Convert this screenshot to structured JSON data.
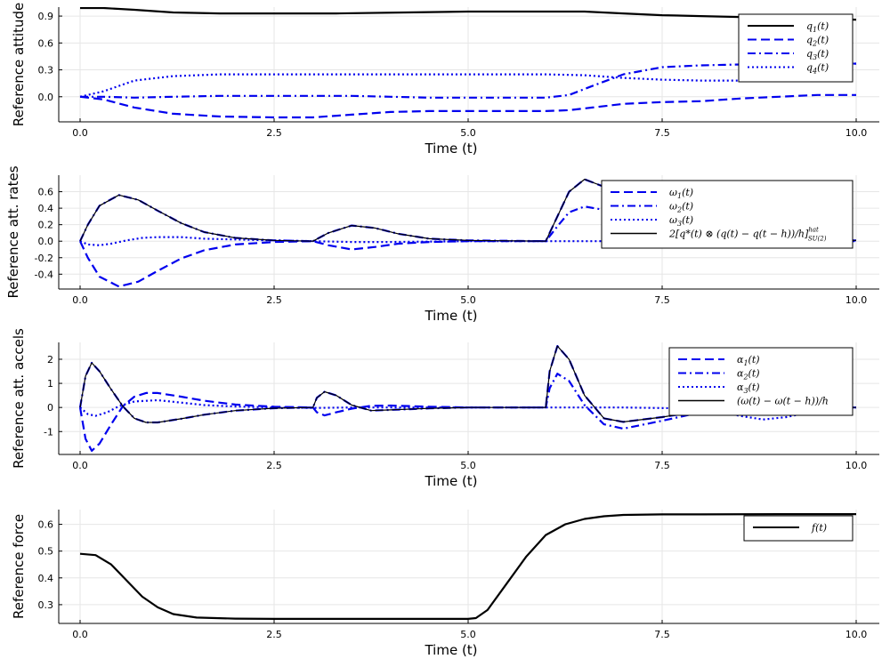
{
  "chart_data": [
    {
      "type": "line",
      "xlabel": "Time (t)",
      "ylabel": "Reference attitude",
      "xlim": [
        0,
        10
      ],
      "ylim": [
        -0.28,
        1.0
      ],
      "xticks": [
        0,
        2.5,
        5,
        7.5,
        10
      ],
      "xtick_labels": [
        "0.0",
        "2.5",
        "5.0",
        "7.5",
        "10.0"
      ],
      "yticks": [
        0,
        0.3,
        0.6,
        0.9
      ],
      "ytick_labels": [
        "0.0",
        "0.3",
        "0.6",
        "0.9"
      ],
      "grid": true,
      "legend_position": "top-right",
      "series": [
        {
          "name": "q_1(t)",
          "style": "solid",
          "color": "#000000",
          "x": [
            0,
            0.3,
            0.7,
            1.2,
            1.8,
            2.5,
            3.3,
            4.2,
            5.0,
            6.0,
            6.5,
            7.0,
            7.5,
            8.0,
            8.5,
            9.0,
            9.5,
            10.0
          ],
          "y": [
            0.99,
            0.99,
            0.97,
            0.94,
            0.93,
            0.93,
            0.93,
            0.94,
            0.95,
            0.95,
            0.95,
            0.93,
            0.91,
            0.9,
            0.89,
            0.88,
            0.87,
            0.86
          ]
        },
        {
          "name": "q_2(t)",
          "style": "dash",
          "color": "#0000ee",
          "x": [
            0,
            0.3,
            0.7,
            1.2,
            1.8,
            2.5,
            3.0,
            3.5,
            4.0,
            4.5,
            5.0,
            5.5,
            6.0,
            6.3,
            6.6,
            7.0,
            7.5,
            8.0,
            8.5,
            9.0,
            9.5,
            10.0
          ],
          "y": [
            0.0,
            -0.03,
            -0.12,
            -0.19,
            -0.22,
            -0.23,
            -0.23,
            -0.2,
            -0.17,
            -0.16,
            -0.16,
            -0.16,
            -0.16,
            -0.15,
            -0.12,
            -0.08,
            -0.06,
            -0.05,
            -0.02,
            0.0,
            0.02,
            0.02
          ]
        },
        {
          "name": "q_3(t)",
          "style": "dashdot",
          "color": "#0000ee",
          "x": [
            0,
            0.3,
            0.7,
            1.2,
            1.8,
            2.5,
            3.0,
            3.5,
            4.0,
            4.5,
            5.0,
            5.5,
            6.0,
            6.3,
            6.6,
            7.0,
            7.5,
            8.0,
            8.5,
            9.0,
            9.5,
            10.0
          ],
          "y": [
            0.0,
            0.0,
            -0.01,
            0.0,
            0.01,
            0.01,
            0.01,
            0.01,
            0.0,
            -0.01,
            -0.01,
            -0.01,
            -0.01,
            0.02,
            0.12,
            0.25,
            0.33,
            0.35,
            0.36,
            0.36,
            0.36,
            0.37
          ]
        },
        {
          "name": "q_4(t)",
          "style": "dot",
          "color": "#0000ee",
          "x": [
            0,
            0.3,
            0.7,
            1.2,
            1.8,
            2.5,
            3.0,
            3.5,
            4.0,
            4.5,
            5.0,
            5.5,
            6.0,
            6.5,
            7.0,
            7.5,
            8.0,
            8.5,
            9.0,
            9.5,
            10.0
          ],
          "y": [
            0.0,
            0.06,
            0.18,
            0.23,
            0.25,
            0.25,
            0.25,
            0.25,
            0.25,
            0.25,
            0.25,
            0.25,
            0.25,
            0.24,
            0.21,
            0.19,
            0.18,
            0.18,
            0.23,
            0.32,
            0.37
          ]
        }
      ]
    },
    {
      "type": "line",
      "xlabel": "Time (t)",
      "ylabel": "Reference att. rates",
      "xlim": [
        0,
        10
      ],
      "ylim": [
        -0.58,
        0.8
      ],
      "xticks": [
        0,
        2.5,
        5,
        7.5,
        10
      ],
      "xtick_labels": [
        "0.0",
        "2.5",
        "5.0",
        "7.5",
        "10.0"
      ],
      "yticks": [
        -0.4,
        -0.2,
        0,
        0.2,
        0.4,
        0.6
      ],
      "ytick_labels": [
        "-0.4",
        "-0.2",
        "0.0",
        "0.2",
        "0.4",
        "0.6"
      ],
      "grid": true,
      "legend_position": "top-right",
      "series": [
        {
          "name": "ω_1(t)",
          "style": "dash",
          "color": "#0000ee",
          "x": [
            0,
            0.1,
            0.25,
            0.5,
            0.75,
            1.0,
            1.3,
            1.6,
            2.0,
            2.5,
            3.0,
            3.2,
            3.5,
            3.8,
            4.1,
            4.5,
            5.0,
            6.0,
            6.15,
            6.3,
            6.5,
            6.75,
            7.0,
            7.3,
            7.6,
            8.0,
            8.5,
            9.0,
            9.5,
            10.0
          ],
          "y": [
            0,
            -0.2,
            -0.43,
            -0.55,
            -0.49,
            -0.36,
            -0.21,
            -0.11,
            -0.04,
            -0.01,
            0,
            -0.05,
            -0.1,
            -0.07,
            -0.03,
            -0.01,
            0,
            0,
            0.3,
            0.6,
            0.75,
            0.66,
            0.4,
            0.15,
            0.03,
            0.01,
            0.01,
            0.01,
            0.01,
            0.01
          ]
        },
        {
          "name": "ω_2(t)",
          "style": "dashdot",
          "color": "#0000ee",
          "x": [
            0,
            0.1,
            0.25,
            0.5,
            0.75,
            1.0,
            1.3,
            1.6,
            2.0,
            2.5,
            3.0,
            3.2,
            3.5,
            3.8,
            4.1,
            4.5,
            5.0,
            6.0,
            6.15,
            6.3,
            6.5,
            6.75,
            7.0,
            7.3,
            7.6,
            8.0,
            8.5,
            9.0,
            9.5,
            10.0
          ],
          "y": [
            0,
            0.2,
            0.43,
            0.56,
            0.5,
            0.37,
            0.22,
            0.11,
            0.04,
            0.01,
            0,
            0.1,
            0.19,
            0.16,
            0.09,
            0.03,
            0.01,
            0,
            0.18,
            0.35,
            0.42,
            0.38,
            0.23,
            0.08,
            0.02,
            0.01,
            0.01,
            0.01,
            0.01,
            0.01
          ]
        },
        {
          "name": "ω_3(t)",
          "style": "dot",
          "color": "#0000ee",
          "x": [
            0,
            0.1,
            0.25,
            0.4,
            0.6,
            0.8,
            1.0,
            1.3,
            1.6,
            2.0,
            2.5,
            3.0,
            3.5,
            4.0,
            5.0,
            6.0,
            6.5,
            7.0,
            7.5,
            8.0,
            8.5,
            9.0,
            9.5,
            10.0
          ],
          "y": [
            0,
            -0.04,
            -0.05,
            -0.03,
            0.01,
            0.04,
            0.05,
            0.05,
            0.03,
            0.02,
            0.01,
            0,
            -0.01,
            -0.01,
            0,
            0,
            0,
            0,
            0,
            0,
            0,
            0,
            0,
            0
          ]
        },
        {
          "name": "2[q^*(t) ⊗ (q(t) − q(t − h))/h]^hat_SU(2)",
          "style": "solid",
          "thin": true,
          "color": "#000000",
          "x": [
            0,
            0.1,
            0.25,
            0.5,
            0.75,
            1.0,
            1.3,
            1.6,
            2.0,
            2.5,
            3.0,
            3.2,
            3.5,
            3.8,
            4.1,
            4.5,
            5.0,
            6.0,
            6.15,
            6.3,
            6.5,
            6.75,
            7.0,
            7.3,
            7.6,
            8.0,
            8.5,
            9.0,
            9.5,
            10.0
          ],
          "y": [
            0,
            0.2,
            0.43,
            0.56,
            0.5,
            0.37,
            0.22,
            0.11,
            0.04,
            0.01,
            0,
            0.1,
            0.19,
            0.16,
            0.09,
            0.03,
            0.01,
            0,
            0.3,
            0.6,
            0.75,
            0.66,
            0.4,
            0.15,
            0.03,
            0.01,
            0.01,
            0.01,
            0.01,
            0.01
          ]
        }
      ]
    },
    {
      "type": "line",
      "xlabel": "Time (t)",
      "ylabel": "Reference att. accels",
      "xlim": [
        0,
        10
      ],
      "ylim": [
        -1.95,
        2.7
      ],
      "xticks": [
        0,
        2.5,
        5,
        7.5,
        10
      ],
      "xtick_labels": [
        "0.0",
        "2.5",
        "5.0",
        "7.5",
        "10.0"
      ],
      "yticks": [
        -1,
        0,
        1,
        2
      ],
      "ytick_labels": [
        "-1",
        "0",
        "1",
        "2"
      ],
      "grid": true,
      "legend_position": "top-right",
      "series": [
        {
          "name": "α_1(t)",
          "style": "dash",
          "color": "#0000ee",
          "x": [
            0,
            0.07,
            0.15,
            0.25,
            0.4,
            0.55,
            0.7,
            0.85,
            1.0,
            1.3,
            1.6,
            2.0,
            2.5,
            3.0,
            3.05,
            3.15,
            3.3,
            3.5,
            3.75,
            4.0,
            4.5,
            5.0,
            6.0,
            6.05,
            6.15,
            6.3,
            6.5,
            6.75,
            7.0,
            7.5,
            8.0,
            8.5,
            9.0,
            9.5,
            10.0
          ],
          "y": [
            0,
            -1.3,
            -1.8,
            -1.5,
            -0.7,
            0.05,
            0.45,
            0.6,
            0.6,
            0.45,
            0.28,
            0.12,
            0.03,
            0,
            -0.2,
            -0.33,
            -0.2,
            -0.05,
            0.07,
            0.08,
            0.03,
            0,
            0,
            1.5,
            2.55,
            2.0,
            0.5,
            -0.45,
            -0.6,
            -0.4,
            -0.15,
            -0.05,
            0,
            0,
            0
          ]
        },
        {
          "name": "α_2(t)",
          "style": "dashdot",
          "color": "#0000ee",
          "x": [
            0,
            0.07,
            0.15,
            0.25,
            0.4,
            0.55,
            0.7,
            0.85,
            1.0,
            1.3,
            1.6,
            2.0,
            2.5,
            3.0,
            3.05,
            3.15,
            3.3,
            3.5,
            3.75,
            4.0,
            4.5,
            5.0,
            6.0,
            6.05,
            6.15,
            6.3,
            6.5,
            6.75,
            7.0,
            7.5,
            8.0,
            8.5,
            9.0,
            9.5,
            10.0
          ],
          "y": [
            0,
            1.3,
            1.85,
            1.5,
            0.75,
            0.05,
            -0.45,
            -0.62,
            -0.62,
            -0.47,
            -0.3,
            -0.13,
            -0.03,
            0,
            0.4,
            0.65,
            0.5,
            0.1,
            -0.13,
            -0.1,
            -0.04,
            0,
            0,
            0.8,
            1.4,
            1.1,
            0.1,
            -0.7,
            -0.88,
            -0.55,
            -0.2,
            -0.05,
            0,
            0,
            0
          ]
        },
        {
          "name": "α_3(t)",
          "style": "dot",
          "color": "#0000ee",
          "x": [
            0,
            0.1,
            0.2,
            0.35,
            0.5,
            0.7,
            1.0,
            1.3,
            1.6,
            2.0,
            2.5,
            3.0,
            3.5,
            4.0,
            5.0,
            6.0,
            7.0,
            8.0,
            8.5,
            8.8,
            9.1,
            9.4,
            9.7,
            10.0
          ],
          "y": [
            0,
            -0.28,
            -0.35,
            -0.2,
            0.05,
            0.25,
            0.3,
            0.2,
            0.1,
            0.04,
            0,
            -0.02,
            0,
            0,
            0,
            0,
            0,
            -0.05,
            -0.35,
            -0.5,
            -0.4,
            -0.2,
            -0.05,
            0
          ]
        },
        {
          "name": "(ω(t) − ω(t − h))/h",
          "style": "solid",
          "thin": true,
          "color": "#000000",
          "x": [
            0,
            0.07,
            0.15,
            0.25,
            0.4,
            0.55,
            0.7,
            0.85,
            1.0,
            1.3,
            1.6,
            2.0,
            2.5,
            3.0,
            3.05,
            3.15,
            3.3,
            3.5,
            3.75,
            4.0,
            4.5,
            5.0,
            6.0,
            6.05,
            6.15,
            6.3,
            6.5,
            6.75,
            7.0,
            7.5,
            8.0,
            8.5,
            9.0,
            9.5,
            10.0
          ],
          "y": [
            0,
            1.3,
            1.85,
            1.5,
            0.75,
            0.05,
            -0.45,
            -0.62,
            -0.62,
            -0.47,
            -0.3,
            -0.13,
            -0.03,
            0,
            0.4,
            0.65,
            0.5,
            0.1,
            -0.13,
            -0.1,
            -0.04,
            0,
            0,
            1.5,
            2.55,
            2.0,
            0.5,
            -0.45,
            -0.6,
            -0.4,
            -0.15,
            -0.05,
            0,
            0,
            0
          ]
        }
      ]
    },
    {
      "type": "line",
      "xlabel": "Time (t)",
      "ylabel": "Reference force",
      "xlim": [
        0,
        10
      ],
      "ylim": [
        0.23,
        0.655
      ],
      "xticks": [
        0,
        2.5,
        5,
        7.5,
        10
      ],
      "xtick_labels": [
        "0.0",
        "2.5",
        "5.0",
        "7.5",
        "10.0"
      ],
      "yticks": [
        0.3,
        0.4,
        0.5,
        0.6
      ],
      "ytick_labels": [
        "0.3",
        "0.4",
        "0.5",
        "0.6"
      ],
      "grid": true,
      "legend_position": "top-right",
      "series": [
        {
          "name": "f(t)",
          "style": "solid",
          "color": "#000000",
          "x": [
            0,
            0.2,
            0.4,
            0.6,
            0.8,
            1.0,
            1.2,
            1.5,
            2.0,
            2.5,
            3.0,
            4.0,
            5.0,
            5.1,
            5.25,
            5.5,
            5.75,
            6.0,
            6.25,
            6.5,
            6.75,
            7.0,
            7.5,
            8.0,
            9.0,
            10.0
          ],
          "y": [
            0.49,
            0.485,
            0.45,
            0.39,
            0.33,
            0.29,
            0.265,
            0.252,
            0.248,
            0.247,
            0.247,
            0.247,
            0.247,
            0.25,
            0.28,
            0.38,
            0.48,
            0.56,
            0.6,
            0.62,
            0.63,
            0.635,
            0.637,
            0.637,
            0.638,
            0.638
          ]
        }
      ]
    }
  ]
}
